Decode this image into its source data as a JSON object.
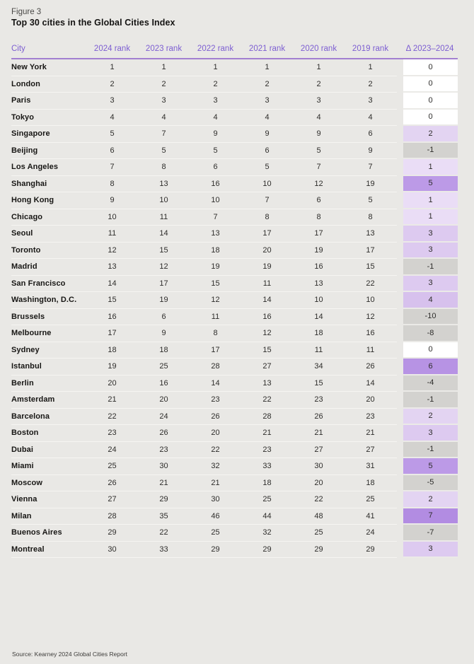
{
  "figure_label": "Figure 3",
  "title": "Top 30 cities in the Global Cities Index",
  "source": "Source: Kearney 2024 Global Cities Report",
  "chart_data": {
    "type": "table",
    "columns": [
      "City",
      "2024 rank",
      "2023 rank",
      "2022 rank",
      "2021 rank",
      "2020 rank",
      "2019 rank",
      "Δ 2023–2024"
    ],
    "rows": [
      {
        "city": "New York",
        "ranks": [
          1,
          1,
          1,
          1,
          1,
          1
        ],
        "delta": 0
      },
      {
        "city": "London",
        "ranks": [
          2,
          2,
          2,
          2,
          2,
          2
        ],
        "delta": 0
      },
      {
        "city": "Paris",
        "ranks": [
          3,
          3,
          3,
          3,
          3,
          3
        ],
        "delta": 0
      },
      {
        "city": "Tokyo",
        "ranks": [
          4,
          4,
          4,
          4,
          4,
          4
        ],
        "delta": 0
      },
      {
        "city": "Singapore",
        "ranks": [
          5,
          7,
          9,
          9,
          9,
          6
        ],
        "delta": 2
      },
      {
        "city": "Beijing",
        "ranks": [
          6,
          5,
          5,
          6,
          5,
          9
        ],
        "delta": -1
      },
      {
        "city": "Los Angeles",
        "ranks": [
          7,
          8,
          6,
          5,
          7,
          7
        ],
        "delta": 1
      },
      {
        "city": "Shanghai",
        "ranks": [
          8,
          13,
          16,
          10,
          12,
          19
        ],
        "delta": 5
      },
      {
        "city": "Hong Kong",
        "ranks": [
          9,
          10,
          10,
          7,
          6,
          5
        ],
        "delta": 1
      },
      {
        "city": "Chicago",
        "ranks": [
          10,
          11,
          7,
          8,
          8,
          8
        ],
        "delta": 1
      },
      {
        "city": "Seoul",
        "ranks": [
          11,
          14,
          13,
          17,
          17,
          13
        ],
        "delta": 3
      },
      {
        "city": "Toronto",
        "ranks": [
          12,
          15,
          18,
          20,
          19,
          17
        ],
        "delta": 3
      },
      {
        "city": "Madrid",
        "ranks": [
          13,
          12,
          19,
          19,
          16,
          15
        ],
        "delta": -1
      },
      {
        "city": "San Francisco",
        "ranks": [
          14,
          17,
          15,
          11,
          13,
          22
        ],
        "delta": 3
      },
      {
        "city": "Washington, D.C.",
        "ranks": [
          15,
          19,
          12,
          14,
          10,
          10
        ],
        "delta": 4
      },
      {
        "city": "Brussels",
        "ranks": [
          16,
          6,
          11,
          16,
          14,
          12
        ],
        "delta": -10
      },
      {
        "city": "Melbourne",
        "ranks": [
          17,
          9,
          8,
          12,
          18,
          16
        ],
        "delta": -8
      },
      {
        "city": "Sydney",
        "ranks": [
          18,
          18,
          17,
          15,
          11,
          11
        ],
        "delta": 0
      },
      {
        "city": "Istanbul",
        "ranks": [
          19,
          25,
          28,
          27,
          34,
          26
        ],
        "delta": 6
      },
      {
        "city": "Berlin",
        "ranks": [
          20,
          16,
          14,
          13,
          15,
          14
        ],
        "delta": -4
      },
      {
        "city": "Amsterdam",
        "ranks": [
          21,
          20,
          23,
          22,
          23,
          20
        ],
        "delta": -1
      },
      {
        "city": "Barcelona",
        "ranks": [
          22,
          24,
          26,
          28,
          26,
          23
        ],
        "delta": 2
      },
      {
        "city": "Boston",
        "ranks": [
          23,
          26,
          20,
          21,
          21,
          21
        ],
        "delta": 3
      },
      {
        "city": "Dubai",
        "ranks": [
          24,
          23,
          22,
          23,
          27,
          27
        ],
        "delta": -1
      },
      {
        "city": "Miami",
        "ranks": [
          25,
          30,
          32,
          33,
          30,
          31
        ],
        "delta": 5
      },
      {
        "city": "Moscow",
        "ranks": [
          26,
          21,
          21,
          18,
          20,
          18
        ],
        "delta": -5
      },
      {
        "city": "Vienna",
        "ranks": [
          27,
          29,
          30,
          25,
          22,
          25
        ],
        "delta": 2
      },
      {
        "city": "Milan",
        "ranks": [
          28,
          35,
          46,
          44,
          48,
          41
        ],
        "delta": 7
      },
      {
        "city": "Buenos Aires",
        "ranks": [
          29,
          22,
          25,
          32,
          25,
          24
        ],
        "delta": -7
      },
      {
        "city": "Montreal",
        "ranks": [
          30,
          33,
          29,
          29,
          29,
          29
        ],
        "delta": 3
      }
    ]
  },
  "colors": {
    "background": "#e9e8e5",
    "accent_text": "#7d5ed2",
    "header_rule": "#a27fd0",
    "delta": {
      "zero": "#ffffff",
      "negative": "#d3d2cf",
      "positive": {
        "1": "#eaddf6",
        "2": "#e3d4f2",
        "3": "#ddcaf0",
        "4": "#d7c1ed",
        "5": "#bc9ae7",
        "6": "#b793e4",
        "7": "#b28ce2"
      }
    }
  }
}
